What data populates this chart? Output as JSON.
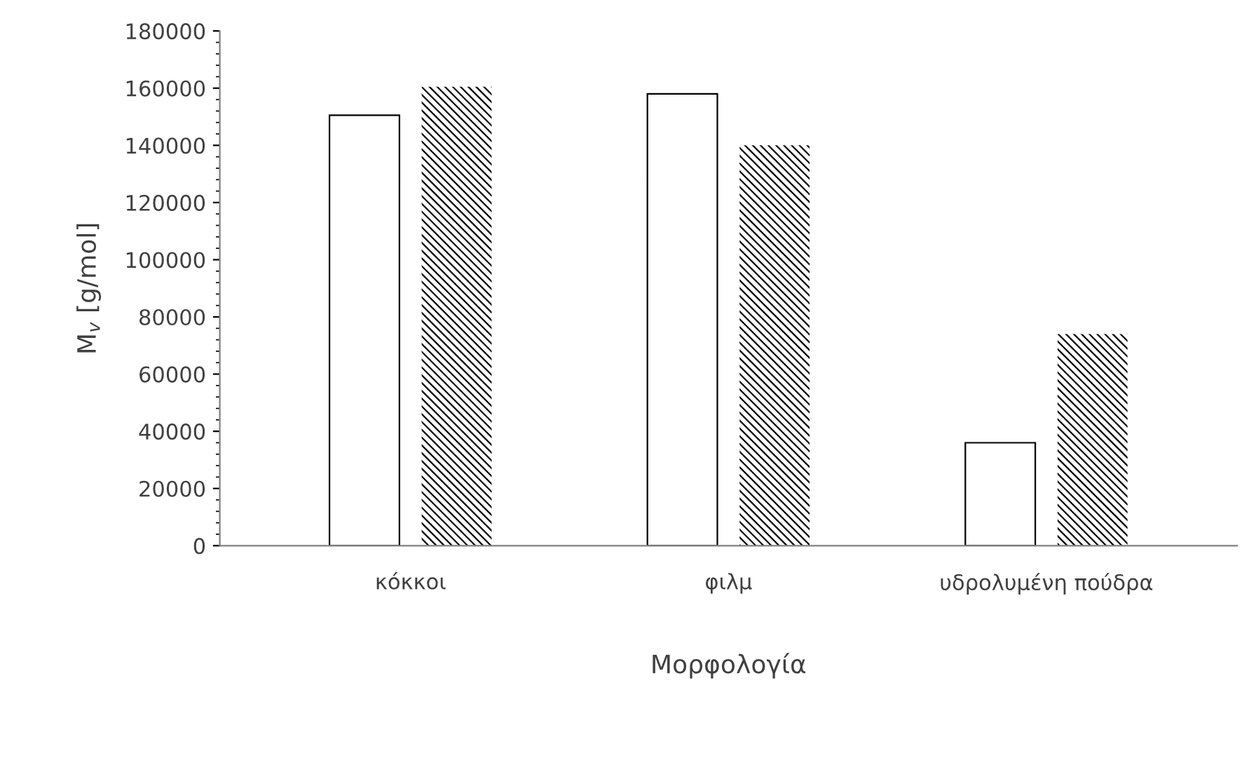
{
  "chart_data": {
    "type": "bar",
    "xlabel": "Μορφολογία",
    "ylabel": "M$_{v}$ [g/mol]",
    "categories": [
      "κόκκοι",
      "φιλμ",
      "υδρολυμένη πούδρα"
    ],
    "series": [
      {
        "color": "#ffffff",
        "values": [
          150500,
          158000,
          36000
        ]
      },
      {
        "color": "#000000",
        "values": [
          160500,
          140000,
          74000
        ]
      }
    ],
    "ylim": [
      0,
      180000
    ],
    "yticks": [
      0,
      20000,
      40000,
      60000,
      80000,
      100000,
      120000,
      140000,
      160000,
      180000
    ],
    "grid": false
  }
}
